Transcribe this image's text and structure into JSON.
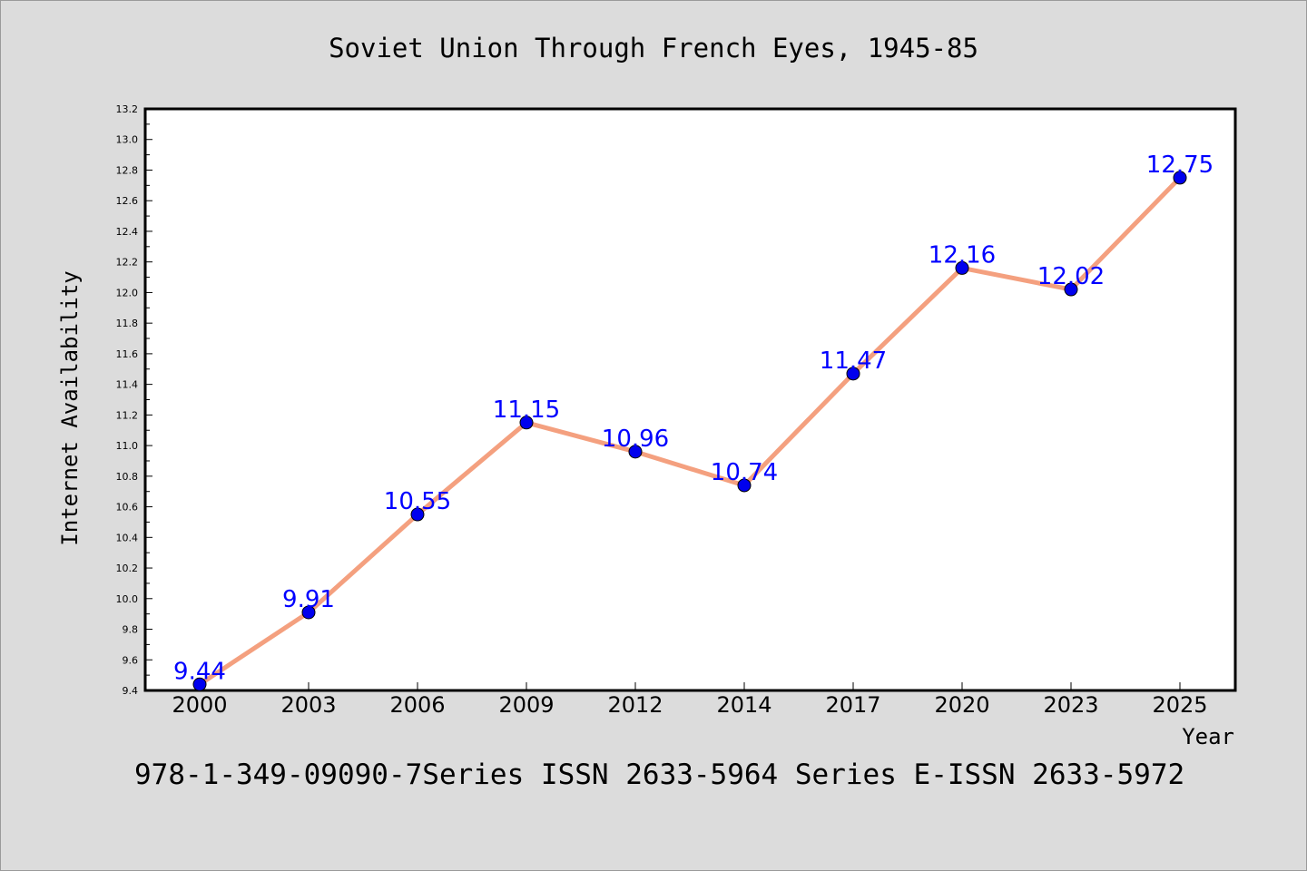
{
  "chart_data": {
    "type": "line",
    "title": "Soviet Union Through French Eyes, 1945-85",
    "xlabel": "Year",
    "ylabel": "Internet Availability",
    "categories": [
      "2000",
      "2003",
      "2006",
      "2009",
      "2012",
      "2014",
      "2017",
      "2020",
      "2023",
      "2025"
    ],
    "series": [
      {
        "values": [
          9.44,
          9.91,
          10.55,
          11.15,
          10.96,
          10.74,
          11.47,
          12.16,
          12.02,
          12.75
        ],
        "labels": [
          "9.44",
          "9.91",
          "10.55",
          "11.15",
          "10.96",
          "10.74",
          "11.47",
          "12.16",
          "12.02",
          "12.75"
        ]
      }
    ],
    "ylim": [
      9.4,
      13.2
    ],
    "yticks": [
      "9.4",
      "9.6",
      "9.8",
      "10.0",
      "10.2",
      "10.4",
      "10.6",
      "10.8",
      "11.0",
      "11.2",
      "11.4",
      "11.6",
      "11.8",
      "12.0",
      "12.2",
      "12.4",
      "12.6",
      "12.8",
      "13.0",
      "13.2"
    ],
    "grid": false,
    "colors": {
      "line": "#f4a07f",
      "marker": "#0000ee",
      "data_label": "#0000ff",
      "plot_background": "#ffffff",
      "figure_background": "#dcdcdc"
    }
  },
  "footer": {
    "text": "978-1-349-09090-7Series ISSN 2633-5964 Series E-ISSN 2633-5972"
  }
}
